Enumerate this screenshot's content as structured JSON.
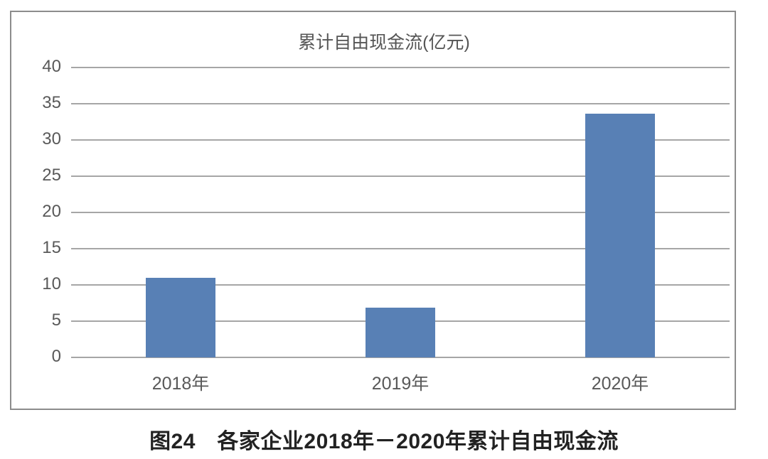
{
  "chart_data": {
    "type": "bar",
    "title": "累计自由现金流(亿元)",
    "categories": [
      "2018年",
      "2019年",
      "2020年"
    ],
    "values": [
      11.0,
      6.9,
      33.6
    ],
    "xlabel": "",
    "ylabel": "",
    "ylim": [
      0,
      40
    ],
    "yticks": [
      "0",
      "5",
      "10",
      "15",
      "20",
      "25",
      "30",
      "35",
      "40"
    ],
    "grid": true,
    "legend": null,
    "bar_color": "#5880b5"
  },
  "caption": "图24　各家企业2018年－2020年累计自由现金流"
}
